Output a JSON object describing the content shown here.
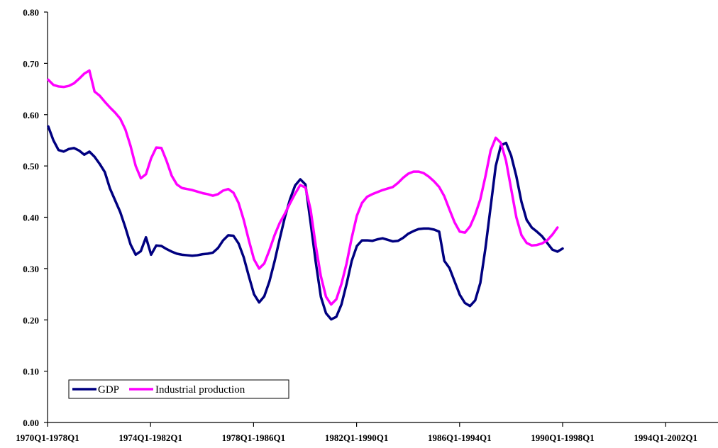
{
  "chart_data": {
    "type": "line",
    "title": "",
    "xlabel": "",
    "ylabel": "",
    "ylim": [
      0,
      0.8
    ],
    "yticks": [
      "0.00",
      "0.10",
      "0.20",
      "0.30",
      "0.40",
      "0.50",
      "0.60",
      "0.70",
      "0.80"
    ],
    "x_ticks": [
      "1970Q1-1978Q1",
      "1974Q1-1982Q1",
      "1978Q1-1986Q1",
      "1982Q1-1990Q1",
      "1986Q1-1994Q1",
      "1990Q1-1998Q1",
      "1994Q1-2002Q1"
    ],
    "grid": false,
    "legend_position": "bottom-left",
    "series": [
      {
        "name": "GDP",
        "color": "#000080",
        "points": [
          [
            0,
            0.577
          ],
          [
            1,
            0.55
          ],
          [
            2,
            0.531
          ],
          [
            3,
            0.528
          ],
          [
            4,
            0.533
          ],
          [
            5,
            0.535
          ],
          [
            6,
            0.53
          ],
          [
            7,
            0.522
          ],
          [
            8,
            0.528
          ],
          [
            9,
            0.518
          ],
          [
            10,
            0.504
          ],
          [
            11,
            0.488
          ],
          [
            12,
            0.456
          ],
          [
            13,
            0.433
          ],
          [
            14,
            0.41
          ],
          [
            15,
            0.38
          ],
          [
            16,
            0.347
          ],
          [
            17,
            0.327
          ],
          [
            18,
            0.334
          ],
          [
            19,
            0.361
          ],
          [
            20,
            0.327
          ],
          [
            21,
            0.345
          ],
          [
            22,
            0.344
          ],
          [
            23,
            0.338
          ],
          [
            24,
            0.333
          ],
          [
            25,
            0.329
          ],
          [
            26,
            0.327
          ],
          [
            27,
            0.326
          ],
          [
            28,
            0.325
          ],
          [
            29,
            0.326
          ],
          [
            30,
            0.328
          ],
          [
            31,
            0.329
          ],
          [
            32,
            0.331
          ],
          [
            33,
            0.34
          ],
          [
            34,
            0.355
          ],
          [
            35,
            0.365
          ],
          [
            36,
            0.364
          ],
          [
            37,
            0.349
          ],
          [
            38,
            0.322
          ],
          [
            39,
            0.285
          ],
          [
            40,
            0.25
          ],
          [
            41,
            0.234
          ],
          [
            42,
            0.246
          ],
          [
            43,
            0.275
          ],
          [
            44,
            0.314
          ],
          [
            45,
            0.358
          ],
          [
            46,
            0.4
          ],
          [
            47,
            0.435
          ],
          [
            48,
            0.462
          ],
          [
            49,
            0.474
          ],
          [
            50,
            0.464
          ],
          [
            51,
            0.39
          ],
          [
            52,
            0.313
          ],
          [
            53,
            0.245
          ],
          [
            54,
            0.213
          ],
          [
            55,
            0.201
          ],
          [
            56,
            0.206
          ],
          [
            57,
            0.23
          ],
          [
            58,
            0.27
          ],
          [
            59,
            0.315
          ],
          [
            60,
            0.344
          ],
          [
            61,
            0.355
          ],
          [
            62,
            0.355
          ],
          [
            63,
            0.354
          ],
          [
            64,
            0.357
          ],
          [
            65,
            0.359
          ],
          [
            66,
            0.356
          ],
          [
            67,
            0.353
          ],
          [
            68,
            0.354
          ],
          [
            69,
            0.36
          ],
          [
            70,
            0.368
          ],
          [
            71,
            0.373
          ],
          [
            72,
            0.377
          ],
          [
            73,
            0.378
          ],
          [
            74,
            0.378
          ],
          [
            75,
            0.376
          ],
          [
            76,
            0.372
          ],
          [
            77,
            0.315
          ],
          [
            78,
            0.301
          ],
          [
            79,
            0.275
          ],
          [
            80,
            0.249
          ],
          [
            81,
            0.233
          ],
          [
            82,
            0.227
          ],
          [
            83,
            0.238
          ],
          [
            84,
            0.272
          ],
          [
            85,
            0.34
          ],
          [
            86,
            0.42
          ],
          [
            87,
            0.5
          ],
          [
            88,
            0.54
          ],
          [
            89,
            0.545
          ],
          [
            90,
            0.52
          ],
          [
            91,
            0.48
          ],
          [
            92,
            0.43
          ],
          [
            93,
            0.395
          ],
          [
            94,
            0.38
          ],
          [
            95,
            0.372
          ],
          [
            96,
            0.363
          ],
          [
            97,
            0.35
          ],
          [
            98,
            0.337
          ],
          [
            99,
            0.333
          ],
          [
            100,
            0.339
          ]
        ]
      },
      {
        "name": "Industrial production",
        "color": "#ff00ff",
        "points": [
          [
            0,
            0.668
          ],
          [
            1,
            0.658
          ],
          [
            2,
            0.655
          ],
          [
            3,
            0.654
          ],
          [
            4,
            0.656
          ],
          [
            5,
            0.661
          ],
          [
            6,
            0.67
          ],
          [
            7,
            0.68
          ],
          [
            8,
            0.686
          ],
          [
            9,
            0.645
          ],
          [
            10,
            0.637
          ],
          [
            11,
            0.625
          ],
          [
            12,
            0.614
          ],
          [
            13,
            0.604
          ],
          [
            14,
            0.592
          ],
          [
            15,
            0.571
          ],
          [
            16,
            0.539
          ],
          [
            17,
            0.5
          ],
          [
            18,
            0.476
          ],
          [
            19,
            0.484
          ],
          [
            20,
            0.515
          ],
          [
            21,
            0.536
          ],
          [
            22,
            0.535
          ],
          [
            23,
            0.51
          ],
          [
            24,
            0.481
          ],
          [
            25,
            0.464
          ],
          [
            26,
            0.457
          ],
          [
            27,
            0.455
          ],
          [
            28,
            0.453
          ],
          [
            29,
            0.45
          ],
          [
            30,
            0.447
          ],
          [
            31,
            0.445
          ],
          [
            32,
            0.442
          ],
          [
            33,
            0.445
          ],
          [
            34,
            0.452
          ],
          [
            35,
            0.455
          ],
          [
            36,
            0.448
          ],
          [
            37,
            0.428
          ],
          [
            38,
            0.395
          ],
          [
            39,
            0.355
          ],
          [
            40,
            0.318
          ],
          [
            41,
            0.3
          ],
          [
            42,
            0.31
          ],
          [
            43,
            0.336
          ],
          [
            44,
            0.365
          ],
          [
            45,
            0.389
          ],
          [
            46,
            0.407
          ],
          [
            47,
            0.427
          ],
          [
            48,
            0.446
          ],
          [
            49,
            0.463
          ],
          [
            50,
            0.458
          ],
          [
            51,
            0.415
          ],
          [
            52,
            0.345
          ],
          [
            53,
            0.285
          ],
          [
            54,
            0.245
          ],
          [
            55,
            0.23
          ],
          [
            56,
            0.24
          ],
          [
            57,
            0.27
          ],
          [
            58,
            0.31
          ],
          [
            59,
            0.36
          ],
          [
            60,
            0.403
          ],
          [
            61,
            0.428
          ],
          [
            62,
            0.44
          ],
          [
            63,
            0.445
          ],
          [
            64,
            0.449
          ],
          [
            65,
            0.453
          ],
          [
            66,
            0.456
          ],
          [
            67,
            0.459
          ],
          [
            68,
            0.467
          ],
          [
            69,
            0.477
          ],
          [
            70,
            0.485
          ],
          [
            71,
            0.489
          ],
          [
            72,
            0.489
          ],
          [
            73,
            0.486
          ],
          [
            74,
            0.479
          ],
          [
            75,
            0.47
          ],
          [
            76,
            0.459
          ],
          [
            77,
            0.441
          ],
          [
            78,
            0.415
          ],
          [
            79,
            0.39
          ],
          [
            80,
            0.372
          ],
          [
            81,
            0.37
          ],
          [
            82,
            0.382
          ],
          [
            83,
            0.405
          ],
          [
            84,
            0.435
          ],
          [
            85,
            0.48
          ],
          [
            86,
            0.53
          ],
          [
            87,
            0.555
          ],
          [
            88,
            0.545
          ],
          [
            89,
            0.51
          ],
          [
            90,
            0.455
          ],
          [
            91,
            0.4
          ],
          [
            92,
            0.365
          ],
          [
            93,
            0.35
          ],
          [
            94,
            0.345
          ],
          [
            95,
            0.346
          ],
          [
            96,
            0.349
          ],
          [
            97,
            0.355
          ],
          [
            98,
            0.366
          ],
          [
            99,
            0.38
          ]
        ]
      }
    ]
  }
}
